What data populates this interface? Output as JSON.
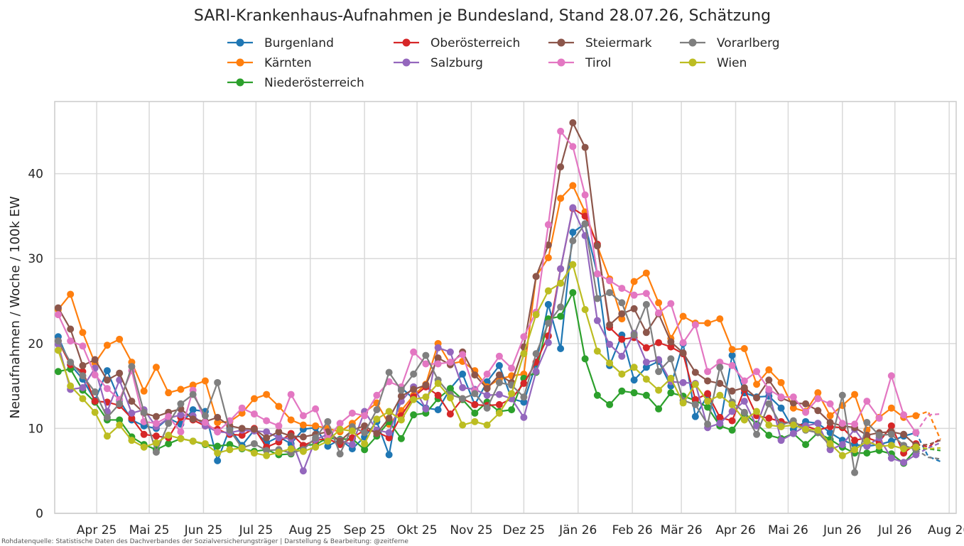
{
  "footer": "Rohdatenquelle: Statistische Daten des Dachverbandes der Sozialversicherungsträger | Darstellung & Bearbeitung: @zeitferne",
  "chart_data": {
    "type": "line",
    "title": "SARI-Krankenhaus-Aufnahmen je Bundesland, Stand 28.07.26, Schätzung",
    "xlabel": "",
    "ylabel": "Neuaufnahmen / Woche / 100k EW",
    "x_ticks": [
      "Apr 25",
      "Mai 25",
      "Jun 25",
      "Jul 25",
      "Aug 25",
      "Sep 25",
      "Okt 25",
      "Nov 25",
      "Dez 25",
      "Jän 26",
      "Feb 26",
      "Mär 26",
      "Apr 26",
      "Mai 26",
      "Jun 26",
      "Jul 26",
      "Aug 26"
    ],
    "x_range": [
      "2025-03-08",
      "2026-08-05"
    ],
    "y_ticks": [
      0,
      10,
      20,
      30,
      40
    ],
    "ylim": [
      0,
      48.5
    ],
    "grid": true,
    "legend_position": "top-center",
    "estimate_note": "the last 2 points of each series are drawn dashed (estimate)",
    "dates": [
      "2025-03-10",
      "2025-03-17",
      "2025-03-24",
      "2025-03-31",
      "2025-04-07",
      "2025-04-14",
      "2025-04-21",
      "2025-04-28",
      "2025-05-05",
      "2025-05-12",
      "2025-05-19",
      "2025-05-26",
      "2025-06-02",
      "2025-06-09",
      "2025-06-16",
      "2025-06-23",
      "2025-06-30",
      "2025-07-07",
      "2025-07-14",
      "2025-07-21",
      "2025-07-28",
      "2025-08-04",
      "2025-08-11",
      "2025-08-18",
      "2025-08-25",
      "2025-09-01",
      "2025-09-08",
      "2025-09-15",
      "2025-09-22",
      "2025-09-29",
      "2025-10-06",
      "2025-10-13",
      "2025-10-20",
      "2025-10-27",
      "2025-11-03",
      "2025-11-10",
      "2025-11-17",
      "2025-11-24",
      "2025-12-01",
      "2025-12-08",
      "2025-12-15",
      "2025-12-22",
      "2025-12-29",
      "2026-01-05",
      "2026-01-12",
      "2026-01-19",
      "2026-01-26",
      "2026-02-02",
      "2026-02-09",
      "2026-02-16",
      "2026-02-23",
      "2026-03-02",
      "2026-03-09",
      "2026-03-16",
      "2026-03-23",
      "2026-03-30",
      "2026-04-06",
      "2026-04-13",
      "2026-04-20",
      "2026-04-27",
      "2026-05-04",
      "2026-05-11",
      "2026-05-18",
      "2026-05-25",
      "2026-06-01",
      "2026-06-08",
      "2026-06-15",
      "2026-06-22",
      "2026-06-29",
      "2026-07-06",
      "2026-07-13",
      "2026-07-20",
      "2026-07-27"
    ],
    "series": [
      {
        "name": "Burgenland",
        "color": "#1f77b4",
        "values": [
          20.8,
          17.5,
          15.8,
          13.3,
          16.8,
          13.3,
          11.0,
          10.3,
          10.0,
          11.2,
          10.5,
          12.2,
          12.0,
          6.2,
          10.0,
          8.0,
          9.8,
          8.3,
          9.0,
          8.2,
          9.9,
          10.1,
          7.9,
          8.7,
          7.6,
          9.0,
          10.8,
          6.9,
          14.8,
          13.5,
          12.4,
          12.2,
          14.7,
          16.4,
          12.8,
          15.5,
          17.4,
          13.5,
          13.1,
          17.6,
          24.6,
          19.4,
          33.1,
          34.1,
          28.2,
          17.4,
          21.0,
          15.7,
          17.2,
          17.9,
          15.0,
          20.0,
          11.4,
          13.9,
          10.3,
          18.6,
          14.2,
          13.7,
          13.8,
          12.4,
          9.9,
          10.8,
          10.6,
          9.5,
          8.6,
          8.1,
          7.9,
          8.1,
          8.5,
          9.1,
          9.5,
          6.7,
          6.1
        ]
      },
      {
        "name": "Kärnten",
        "color": "#ff7f0e",
        "values": [
          24.0,
          25.8,
          21.3,
          17.7,
          19.8,
          20.5,
          17.8,
          14.4,
          17.2,
          14.2,
          14.6,
          15.1,
          15.6,
          10.7,
          10.8,
          11.8,
          13.5,
          14.0,
          12.6,
          11.0,
          10.4,
          10.3,
          10.0,
          9.6,
          10.6,
          11.9,
          13.0,
          10.5,
          12.1,
          13.9,
          15.2,
          20.0,
          17.6,
          17.9,
          16.8,
          14.9,
          15.8,
          16.2,
          16.4,
          27.9,
          30.1,
          37.1,
          38.6,
          35.5,
          31.5,
          27.6,
          22.9,
          27.3,
          28.3,
          24.8,
          20.6,
          23.2,
          22.4,
          22.4,
          22.9,
          19.3,
          19.4,
          15.2,
          16.9,
          15.4,
          12.4,
          12.0,
          14.2,
          11.5,
          12.7,
          14.0,
          9.8,
          11.3,
          12.4,
          11.3,
          11.5,
          12.0,
          8.7
        ]
      },
      {
        "name": "Niederösterreich",
        "color": "#2ca02c",
        "values": [
          16.7,
          17.0,
          14.5,
          13.1,
          11.0,
          11.0,
          9.0,
          8.1,
          7.5,
          8.2,
          8.8,
          8.5,
          8.1,
          7.9,
          8.1,
          7.6,
          7.3,
          7.5,
          6.9,
          7.0,
          8.0,
          8.1,
          8.9,
          8.7,
          8.8,
          7.5,
          9.1,
          10.8,
          8.8,
          11.6,
          11.8,
          13.5,
          14.7,
          13.4,
          11.8,
          13.1,
          12.0,
          12.2,
          15.9,
          16.6,
          22.9,
          23.2,
          26.0,
          18.2,
          13.9,
          12.8,
          14.4,
          14.2,
          13.9,
          12.3,
          14.2,
          13.8,
          13.3,
          12.5,
          10.3,
          9.8,
          11.8,
          10.5,
          9.2,
          8.8,
          9.4,
          8.1,
          9.5,
          8.7,
          7.8,
          7.1,
          7.1,
          7.4,
          7.0,
          5.9,
          7.5,
          7.6,
          7.4
        ]
      },
      {
        "name": "Oberösterreich",
        "color": "#d62728",
        "values": [
          20.3,
          17.5,
          16.7,
          13.2,
          13.1,
          12.7,
          11.2,
          9.3,
          9.1,
          8.9,
          11.3,
          11.0,
          10.3,
          9.9,
          9.3,
          9.2,
          10.0,
          7.8,
          8.4,
          9.4,
          8.0,
          8.6,
          8.8,
          8.1,
          8.9,
          9.8,
          9.6,
          8.9,
          11.5,
          13.7,
          14.9,
          13.9,
          11.7,
          13.5,
          12.8,
          12.7,
          12.8,
          13.5,
          15.3,
          17.8,
          20.9,
          28.8,
          35.9,
          35.0,
          31.7,
          21.9,
          20.5,
          20.7,
          19.5,
          20.1,
          19.6,
          18.8,
          13.4,
          14.1,
          11.3,
          10.9,
          14.6,
          11.5,
          11.2,
          10.8,
          10.6,
          10.3,
          9.8,
          10.2,
          10.1,
          8.6,
          8.9,
          8.4,
          10.3,
          7.1,
          8.2,
          7.8,
          8.8
        ]
      },
      {
        "name": "Salzburg",
        "color": "#9467bd",
        "values": [
          19.9,
          14.6,
          14.8,
          17.1,
          12.0,
          15.7,
          11.8,
          12.2,
          10.2,
          11.2,
          11.6,
          11.5,
          10.3,
          9.6,
          9.5,
          9.8,
          9.7,
          9.6,
          8.9,
          8.8,
          5.0,
          8.7,
          9.3,
          8.6,
          8.1,
          12.0,
          9.8,
          9.5,
          13.2,
          14.9,
          12.3,
          19.5,
          19.0,
          14.8,
          14.6,
          13.9,
          14.0,
          13.5,
          11.3,
          16.7,
          20.1,
          28.8,
          36.0,
          32.7,
          22.7,
          19.9,
          18.5,
          21.2,
          17.8,
          18.1,
          15.5,
          15.4,
          15.3,
          10.1,
          10.6,
          12.0,
          13.2,
          10.3,
          14.3,
          8.6,
          9.4,
          10.3,
          10.6,
          7.5,
          8.1,
          9.9,
          7.9,
          8.9,
          6.5,
          6.0,
          6.9,
          7.7,
          8.3
        ]
      },
      {
        "name": "Steiermark",
        "color": "#8c564b",
        "values": [
          24.2,
          21.7,
          17.4,
          18.1,
          15.7,
          16.5,
          13.2,
          11.8,
          11.4,
          11.9,
          12.3,
          11.1,
          10.8,
          11.3,
          10.3,
          10.0,
          9.9,
          8.9,
          9.6,
          9.1,
          9.0,
          9.3,
          9.6,
          8.5,
          9.8,
          10.3,
          9.4,
          11.2,
          13.8,
          14.6,
          15.1,
          18.3,
          17.5,
          19.0,
          16.3,
          14.7,
          16.3,
          15.4,
          19.6,
          27.9,
          31.6,
          40.8,
          46.0,
          43.1,
          31.5,
          22.2,
          23.5,
          24.1,
          21.3,
          23.5,
          20.2,
          18.9,
          16.6,
          15.6,
          15.3,
          14.4,
          14.8,
          13.6,
          15.7,
          13.6,
          13.0,
          12.9,
          12.1,
          10.7,
          10.3,
          10.1,
          9.2,
          9.5,
          9.6,
          9.3,
          8.0,
          8.1,
          8.6
        ]
      },
      {
        "name": "Tirol",
        "color": "#e377c2",
        "values": [
          23.4,
          20.3,
          19.7,
          16.3,
          14.7,
          13.4,
          16.8,
          10.8,
          10.6,
          11.4,
          9.6,
          14.5,
          10.7,
          9.6,
          10.9,
          12.4,
          11.7,
          10.9,
          10.3,
          14.0,
          11.5,
          12.3,
          8.8,
          10.6,
          11.8,
          11.5,
          13.9,
          15.5,
          14.9,
          19.0,
          17.6,
          17.6,
          17.8,
          18.7,
          14.4,
          16.4,
          18.5,
          17.1,
          20.8,
          23.7,
          34.0,
          45.0,
          43.2,
          37.5,
          28.2,
          27.4,
          26.5,
          25.7,
          25.9,
          23.6,
          24.7,
          20.1,
          22.2,
          16.7,
          17.8,
          17.4,
          15.6,
          16.7,
          14.6,
          13.7,
          13.7,
          11.9,
          13.5,
          12.9,
          10.6,
          10.5,
          13.2,
          11.2,
          16.2,
          11.6,
          9.5,
          11.6,
          11.7
        ]
      },
      {
        "name": "Vorarlberg",
        "color": "#7f7f7f",
        "values": [
          20.3,
          17.8,
          16.2,
          14.3,
          11.3,
          12.9,
          17.3,
          11.9,
          7.2,
          10.6,
          12.9,
          14.0,
          11.5,
          15.4,
          9.8,
          7.7,
          8.2,
          7.4,
          7.5,
          7.1,
          7.5,
          8.9,
          10.8,
          7.0,
          10.2,
          9.5,
          12.2,
          16.6,
          14.5,
          16.4,
          18.6,
          15.7,
          14.0,
          13.5,
          14.1,
          12.4,
          15.4,
          15.1,
          13.7,
          18.8,
          22.4,
          24.3,
          32.1,
          34.1,
          25.3,
          26.0,
          24.8,
          21.0,
          24.6,
          16.7,
          18.2,
          13.3,
          12.8,
          10.5,
          17.2,
          13.1,
          11.9,
          9.3,
          12.9,
          10.4,
          10.9,
          9.8,
          9.5,
          8.0,
          13.9,
          4.8,
          10.7,
          9.2,
          9.3,
          8.0,
          7.5,
          6.6,
          6.4
        ]
      },
      {
        "name": "Wien",
        "color": "#bcbd22",
        "values": [
          19.2,
          15.0,
          13.5,
          11.9,
          9.1,
          10.4,
          8.6,
          7.8,
          8.3,
          9.2,
          8.8,
          8.5,
          8.2,
          7.1,
          7.5,
          7.7,
          7.1,
          6.8,
          7.2,
          7.6,
          7.3,
          7.8,
          8.5,
          9.9,
          9.7,
          8.2,
          11.1,
          12.0,
          11.0,
          13.4,
          13.7,
          15.3,
          13.6,
          10.4,
          10.8,
          10.4,
          11.8,
          14.1,
          18.8,
          23.4,
          26.2,
          27.1,
          29.3,
          24.0,
          19.1,
          17.7,
          16.4,
          17.2,
          15.8,
          14.5,
          15.9,
          13.0,
          15.2,
          13.2,
          13.9,
          12.8,
          11.0,
          12.0,
          10.4,
          10.2,
          10.4,
          9.9,
          9.8,
          8.2,
          6.8,
          7.5,
          8.5,
          7.9,
          8.0,
          7.6,
          7.8,
          7.6,
          7.7
        ]
      }
    ]
  }
}
